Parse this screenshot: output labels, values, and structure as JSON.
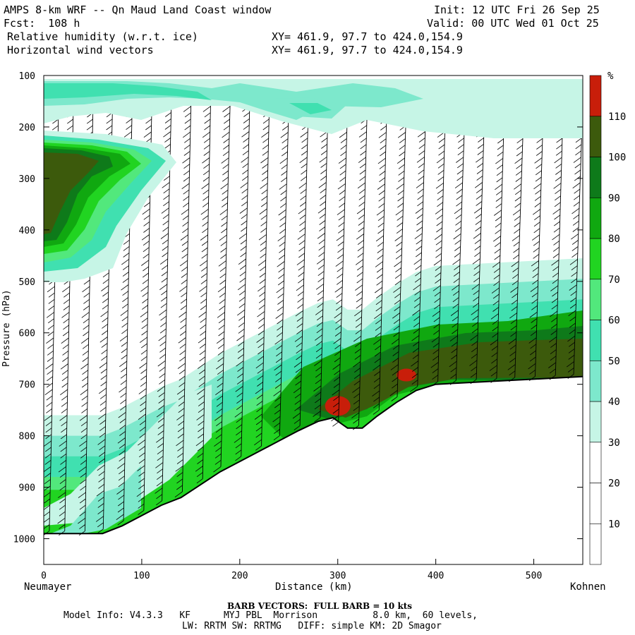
{
  "header": {
    "title_left": "AMPS 8-km WRF -- Qn Maud Land Coast window",
    "init": "Init: 12 UTC Fri 26 Sep 25",
    "fcst": "Fcst:  108 h",
    "valid": "Valid: 00 UTC Wed 01 Oct 25",
    "field1": "Relative humidity (w.r.t. ice)",
    "field1_xy": "XY= 461.9, 97.7 to 424.0,154.9",
    "field2": "Horizontal wind vectors",
    "field2_xy": "XY= 461.9, 97.7 to 424.0,154.9"
  },
  "footer": {
    "barb_note": "BARB VECTORS:  FULL BARB = 10 kts",
    "model_info": "Model Info: V4.3.3   KF      MYJ PBL  Morrison          8.0 km,  60 levels,",
    "physics": "LW: RRTM SW: RRTMG   DIFF: simple KM: 2D Smagor"
  },
  "colors": {
    "c30_40": "#c6f5e6",
    "c40_50": "#7de8cc",
    "c50_60": "#40e0b0",
    "c60_70": "#52e87c",
    "c70_80": "#21d421",
    "c80_90": "#10a810",
    "c90_100": "#0e7a1a",
    "c100_110": "#3c5a0c",
    "c110": "#c81e0a",
    "terrain": "#ffffff",
    "barb": "#000000"
  },
  "chart_data": {
    "type": "cross-section",
    "title": "Relative humidity (w.r.t. ice) and horizontal wind vectors",
    "xlabel": "Distance (km)",
    "ylabel": "Pressure (hPa)",
    "xlim": [
      0,
      550
    ],
    "ylim": [
      1050,
      100
    ],
    "x_ticks": [
      0,
      100,
      200,
      300,
      400,
      500
    ],
    "x_tick_labels": [
      "0",
      "100",
      "200",
      "300",
      "400",
      "500"
    ],
    "y_ticks": [
      100,
      200,
      300,
      400,
      500,
      600,
      700,
      800,
      900,
      1000
    ],
    "y_tick_labels": [
      "100",
      "200",
      "300",
      "400",
      "500",
      "600",
      "700",
      "800",
      "900",
      "1000"
    ],
    "start_label": "Neumayer",
    "end_label": "Kohnen",
    "colorbar": {
      "unit": "%",
      "levels": [
        10,
        20,
        30,
        40,
        50,
        60,
        70,
        80,
        90,
        100,
        110
      ],
      "level_labels": [
        "10",
        "20",
        "30",
        "40",
        "50",
        "60",
        "70",
        "80",
        "90",
        "100",
        "110"
      ]
    },
    "surface_pressure": {
      "x": [
        0,
        30,
        60,
        80,
        100,
        120,
        140,
        160,
        180,
        200,
        220,
        240,
        260,
        280,
        295,
        310,
        325,
        340,
        360,
        380,
        400,
        450,
        500,
        550
      ],
      "p": [
        990,
        990,
        990,
        975,
        955,
        935,
        920,
        895,
        870,
        850,
        830,
        810,
        790,
        772,
        765,
        785,
        785,
        762,
        735,
        712,
        700,
        695,
        690,
        685
      ]
    },
    "rh_features": [
      {
        "name": "upper-level moist layer",
        "x_range": [
          0,
          550
        ],
        "p_range": [
          110,
          250
        ],
        "rh_max": 60
      },
      {
        "name": "upper moist plume near Neumayer",
        "x_range": [
          0,
          80
        ],
        "p_range": [
          240,
          470
        ],
        "rh_max": 105
      },
      {
        "name": "low-level moist layer over slope",
        "x_range": [
          0,
          550
        ],
        "p_range": [
          "surface-100",
          "surface"
        ],
        "rh_max": 105
      },
      {
        "name": "supersaturated pocket A",
        "x_center": 300,
        "p_center": 742,
        "rh": 112
      },
      {
        "name": "supersaturated pocket B",
        "x_center": 370,
        "p_center": 682,
        "rh": 112
      }
    ],
    "wind_barbs": {
      "x": [
        10,
        25,
        45,
        65,
        85,
        105,
        125,
        145,
        165,
        185,
        205,
        225,
        245,
        265,
        285,
        305,
        325,
        345,
        365,
        385,
        405,
        425,
        445,
        465,
        485,
        505,
        525,
        545
      ],
      "speed_kts_upper": 30,
      "speed_kts_lower": 30,
      "direction_deg": 300
    }
  }
}
